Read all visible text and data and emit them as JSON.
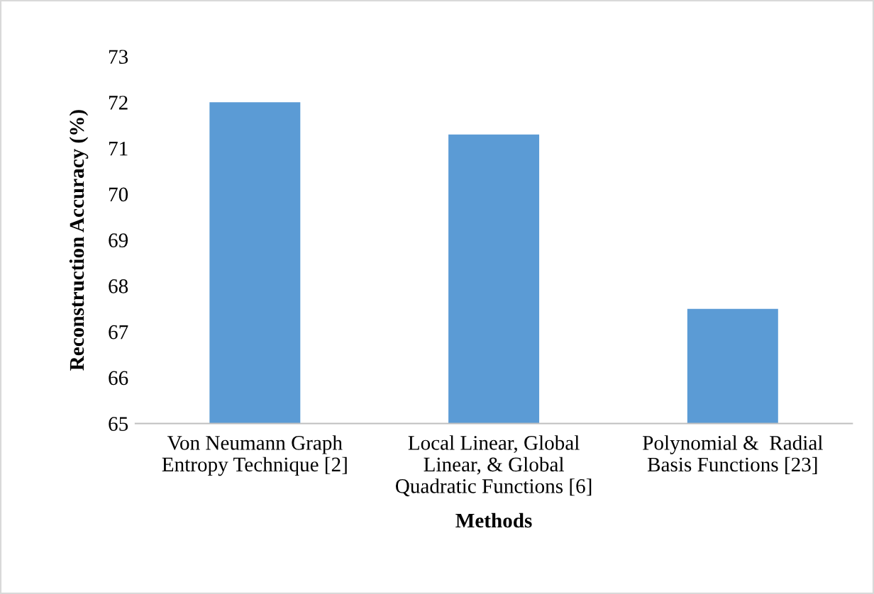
{
  "chart_data": {
    "type": "bar",
    "categories": [
      "Von Neumann Graph\nEntropy Technique [2]",
      "Local Linear, Global\nLinear, & Global\nQuadratic Functions [6]",
      "Polynomial &  Radial\nBasis Functions [23]"
    ],
    "values": [
      72.0,
      71.3,
      67.5
    ],
    "color": "#5b9bd5",
    "xlabel": "Methods",
    "ylabel": "Reconstruction Accuracy (%)",
    "ylim": [
      65,
      73
    ],
    "yticks": [
      65,
      66,
      67,
      68,
      69,
      70,
      71,
      72,
      73
    ],
    "grid": false,
    "legend": false
  }
}
